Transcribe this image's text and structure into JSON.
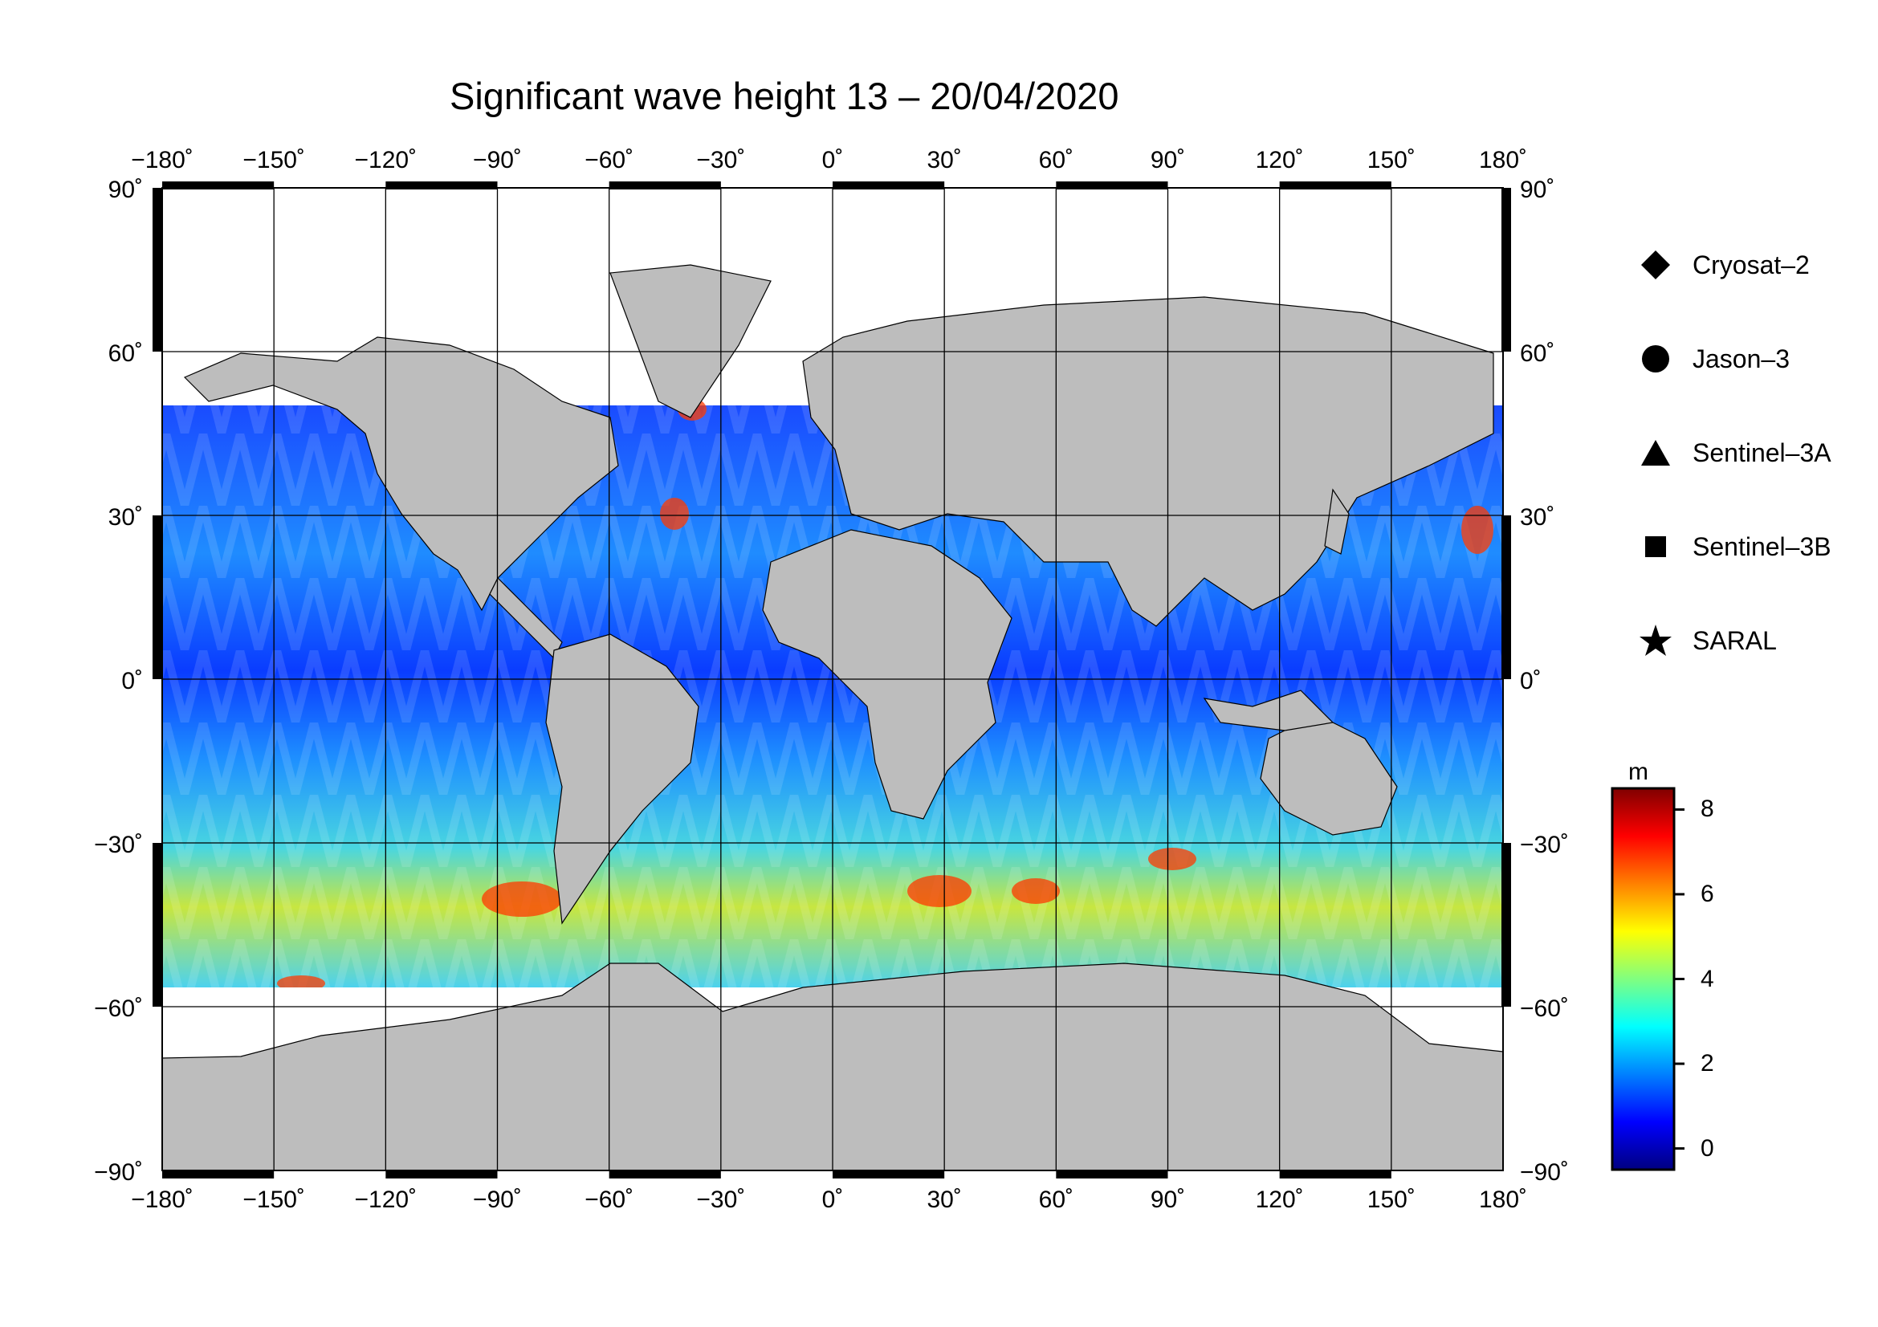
{
  "title": "Significant wave height 13 – 20/04/2020",
  "map": {
    "lon_ticks": [
      "−180˚",
      "−150˚",
      "−120˚",
      "−90˚",
      "−60˚",
      "−30˚",
      "0˚",
      "30˚",
      "60˚",
      "90˚",
      "120˚",
      "150˚",
      "180˚"
    ],
    "lat_ticks": [
      "90˚",
      "60˚",
      "30˚",
      "0˚",
      "−30˚",
      "−60˚",
      "−90˚"
    ],
    "lon_values": [
      -180,
      -150,
      -120,
      -90,
      -60,
      -30,
      0,
      30,
      60,
      90,
      120,
      150,
      180
    ],
    "lat_values": [
      90,
      60,
      30,
      0,
      -30,
      -60,
      -90
    ],
    "land_color": "#bdbdbd",
    "ice_color": "#ffffff",
    "ocean_low_color": "#0a2cff",
    "ocean_high_color": "#ff3000"
  },
  "legend": [
    {
      "symbol": "diamond",
      "label": "Cryosat–2"
    },
    {
      "symbol": "circle",
      "label": "Jason–3"
    },
    {
      "symbol": "triangle",
      "label": "Sentinel–3A"
    },
    {
      "symbol": "square",
      "label": "Sentinel–3B"
    },
    {
      "symbol": "star",
      "label": "SARAL"
    }
  ],
  "colorbar": {
    "unit": "m",
    "ticks": [
      "8",
      "6",
      "4",
      "2",
      "0"
    ],
    "min": -0.5,
    "max": 8.5,
    "colors": [
      "#000080",
      "#0000ff",
      "#0080ff",
      "#00ffff",
      "#80ff80",
      "#ffff00",
      "#ff8000",
      "#ff0000",
      "#800000"
    ]
  }
}
